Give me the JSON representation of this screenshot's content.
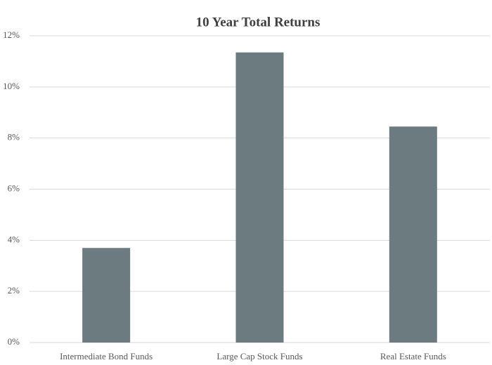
{
  "chart_data": {
    "type": "bar",
    "title": "10 Year Total Returns",
    "categories": [
      "Intermediate Bond Funds",
      "Large Cap Stock Funds",
      "Real Estate Funds"
    ],
    "values": [
      3.7,
      11.35,
      8.45
    ],
    "color": "#6b7b80",
    "ylim": [
      0,
      12
    ],
    "yticks": [
      {
        "value": 0,
        "label": "0%"
      },
      {
        "value": 2,
        "label": "2%"
      },
      {
        "value": 4,
        "label": "4%"
      },
      {
        "value": 6,
        "label": "6%"
      },
      {
        "value": 8,
        "label": "8%"
      },
      {
        "value": 10,
        "label": "10%"
      },
      {
        "value": 12,
        "label": "12%"
      }
    ],
    "grid": true
  }
}
